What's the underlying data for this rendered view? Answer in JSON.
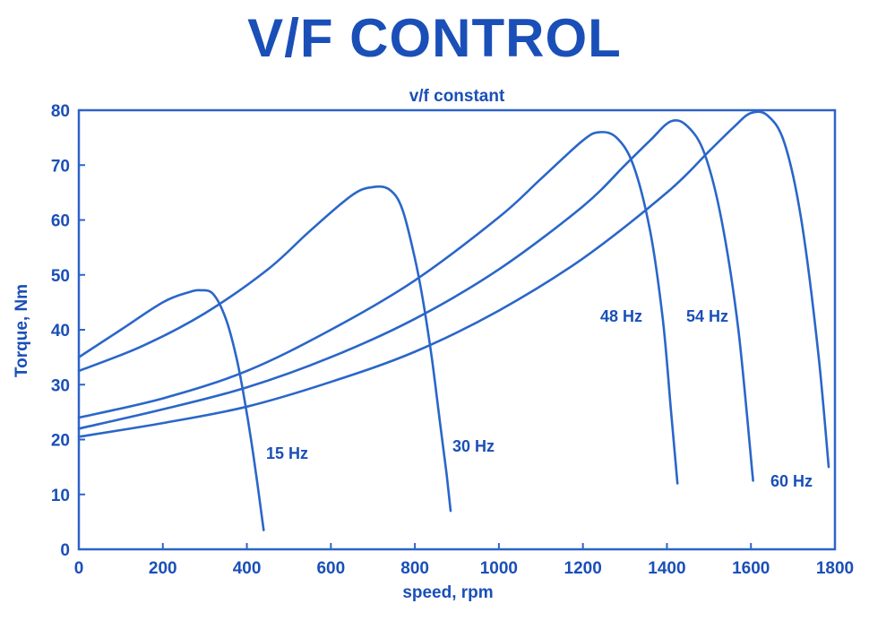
{
  "colors": {
    "title": "#1a4fb8",
    "text": "#1a4fb8",
    "axis": "#2d63c8",
    "curve": "#2a66c9"
  },
  "chart_data": {
    "type": "line",
    "title": "V/F CONTROL",
    "subtitle": "v/f constant",
    "xlabel": "speed, rpm",
    "ylabel": "Torque, Nm",
    "xlim": [
      0,
      1800
    ],
    "ylim": [
      0,
      80
    ],
    "xticks": [
      0,
      200,
      400,
      600,
      800,
      1000,
      1200,
      1400,
      1600,
      1800
    ],
    "yticks": [
      0,
      10,
      20,
      30,
      40,
      50,
      60,
      70,
      80
    ],
    "grid": false,
    "legend": "none",
    "series": [
      {
        "name": "15 Hz",
        "x": [
          0,
          100,
          200,
          260,
          290,
          320,
          350,
          375,
          395,
          410,
          425,
          440
        ],
        "y": [
          35,
          40,
          45,
          46.8,
          47.2,
          46.5,
          42,
          35,
          27,
          20,
          12,
          3.5
        ]
      },
      {
        "name": "30 Hz",
        "x": [
          0,
          150,
          300,
          450,
          550,
          650,
          700,
          740,
          770,
          800,
          820,
          840,
          860,
          875,
          885
        ],
        "y": [
          32.5,
          37,
          43,
          51,
          58,
          64.5,
          66,
          65.5,
          62,
          53,
          45,
          35,
          23,
          14,
          7
        ]
      },
      {
        "name": "48 Hz",
        "x": [
          0,
          200,
          400,
          600,
          800,
          1000,
          1100,
          1200,
          1240,
          1280,
          1320,
          1360,
          1390,
          1410,
          1425
        ],
        "y": [
          24,
          27.5,
          32.5,
          40,
          49,
          60.5,
          67.5,
          74.5,
          76,
          75,
          70,
          58,
          42,
          25,
          12
        ]
      },
      {
        "name": "54 Hz",
        "x": [
          0,
          200,
          400,
          600,
          800,
          1000,
          1200,
          1300,
          1360,
          1410,
          1450,
          1490,
          1530,
          1570,
          1605
        ],
        "y": [
          22,
          25.5,
          29.5,
          35,
          42,
          51,
          62.5,
          70,
          74.5,
          78,
          77,
          72,
          60,
          40,
          12.5
        ]
      },
      {
        "name": "60 Hz",
        "x": [
          0,
          200,
          400,
          600,
          800,
          1000,
          1200,
          1400,
          1500,
          1560,
          1600,
          1640,
          1680,
          1720,
          1760,
          1785
        ],
        "y": [
          20.5,
          23,
          26,
          30.5,
          36,
          43.5,
          53,
          65,
          72.5,
          77,
          79.5,
          79,
          74,
          60,
          36,
          15
        ]
      }
    ]
  }
}
